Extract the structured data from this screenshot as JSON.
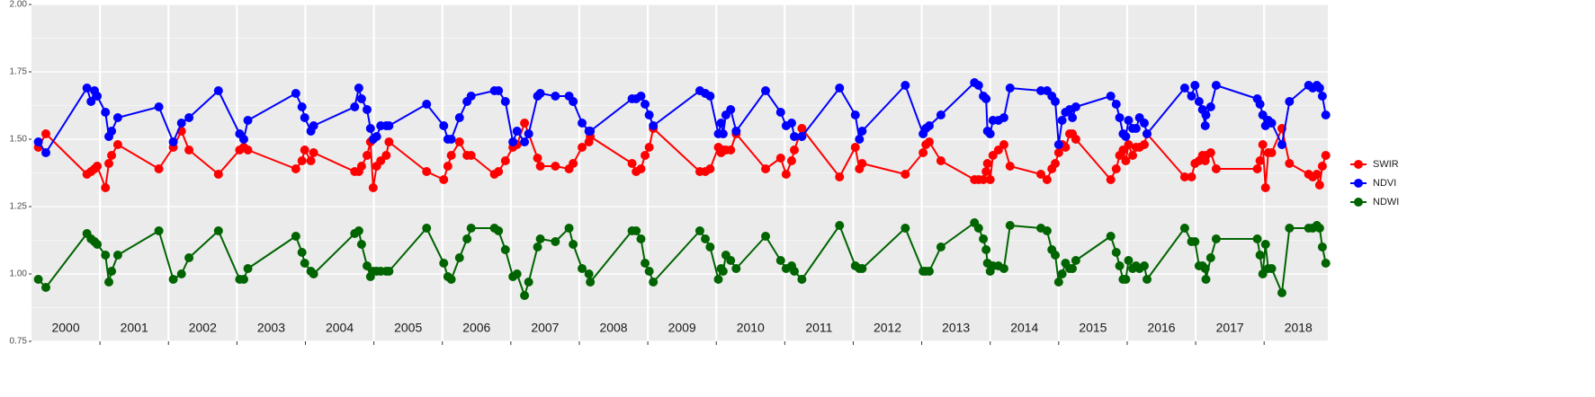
{
  "chart_data": {
    "type": "line",
    "x": [
      2000.1,
      2000.21,
      2000.81,
      2000.87,
      2000.92,
      2000.96,
      2001.08,
      2001.13,
      2001.17,
      2001.26,
      2001.86,
      2002.07,
      2002.19,
      2002.3,
      2002.73,
      2003.04,
      2003.1,
      2003.16,
      2003.86,
      2003.95,
      2003.99,
      2004.08,
      2004.12,
      2004.72,
      2004.78,
      2004.82,
      2004.9,
      2004.95,
      2004.99,
      2005.04,
      2005.1,
      2005.18,
      2005.22,
      2005.77,
      2006.02,
      2006.08,
      2006.13,
      2006.25,
      2006.36,
      2006.42,
      2006.76,
      2006.82,
      2006.92,
      2007.03,
      2007.09,
      2007.2,
      2007.26,
      2007.39,
      2007.43,
      2007.65,
      2007.85,
      2007.91,
      2008.04,
      2008.14,
      2008.16,
      2008.77,
      2008.83,
      2008.9,
      2008.96,
      2009.02,
      2009.08,
      2009.76,
      2009.84,
      2009.91,
      2010.03,
      2010.07,
      2010.1,
      2010.14,
      2010.21,
      2010.29,
      2010.72,
      2010.94,
      2011.02,
      2011.1,
      2011.14,
      2011.25,
      2011.8,
      2012.03,
      2012.09,
      2012.13,
      2012.76,
      2013.02,
      2013.06,
      2013.11,
      2013.28,
      2013.77,
      2013.83,
      2013.9,
      2013.94,
      2013.96,
      2014.0,
      2014.04,
      2014.12,
      2014.2,
      2014.29,
      2014.74,
      2014.83,
      2014.9,
      2014.95,
      2015.0,
      2015.05,
      2015.1,
      2015.16,
      2015.2,
      2015.25,
      2015.76,
      2015.84,
      2015.89,
      2015.94,
      2015.98,
      2016.02,
      2016.08,
      2016.13,
      2016.18,
      2016.25,
      2016.29,
      2016.84,
      2016.94,
      2016.99,
      2017.05,
      2017.1,
      2017.14,
      2017.15,
      2017.22,
      2017.3,
      2017.9,
      2017.94,
      2017.98,
      2018.02,
      2018.06,
      2018.11,
      2018.26,
      2018.37,
      2018.65,
      2018.71,
      2018.77,
      2018.81,
      2018.85,
      2018.9
    ],
    "series": [
      {
        "name": "SWIR",
        "color": "#ff0000",
        "values": [
          1.47,
          1.52,
          1.37,
          1.38,
          1.39,
          1.4,
          1.32,
          1.41,
          1.44,
          1.48,
          1.39,
          1.47,
          1.53,
          1.46,
          1.37,
          1.46,
          1.47,
          1.46,
          1.39,
          1.42,
          1.46,
          1.42,
          1.45,
          1.38,
          1.38,
          1.4,
          1.44,
          1.49,
          1.32,
          1.4,
          1.42,
          1.44,
          1.49,
          1.38,
          1.35,
          1.4,
          1.44,
          1.49,
          1.44,
          1.44,
          1.37,
          1.38,
          1.42,
          1.47,
          1.48,
          1.56,
          1.52,
          1.43,
          1.4,
          1.4,
          1.39,
          1.41,
          1.47,
          1.49,
          1.51,
          1.41,
          1.38,
          1.39,
          1.44,
          1.47,
          1.54,
          1.38,
          1.38,
          1.39,
          1.47,
          1.45,
          1.46,
          1.46,
          1.46,
          1.52,
          1.39,
          1.43,
          1.37,
          1.42,
          1.46,
          1.54,
          1.36,
          1.47,
          1.39,
          1.41,
          1.37,
          1.45,
          1.48,
          1.49,
          1.42,
          1.35,
          1.35,
          1.35,
          1.38,
          1.41,
          1.35,
          1.44,
          1.46,
          1.48,
          1.4,
          1.37,
          1.35,
          1.39,
          1.41,
          1.45,
          1.48,
          1.47,
          1.52,
          1.52,
          1.5,
          1.35,
          1.39,
          1.44,
          1.46,
          1.42,
          1.48,
          1.44,
          1.47,
          1.47,
          1.48,
          1.52,
          1.36,
          1.36,
          1.41,
          1.42,
          1.44,
          1.42,
          1.44,
          1.45,
          1.39,
          1.39,
          1.42,
          1.48,
          1.32,
          1.45,
          1.45,
          1.54,
          1.41,
          1.37,
          1.36,
          1.37,
          1.33,
          1.4,
          1.44
        ]
      },
      {
        "name": "NDVI",
        "color": "#0000ff",
        "values": [
          1.49,
          1.45,
          1.69,
          1.64,
          1.68,
          1.66,
          1.6,
          1.51,
          1.53,
          1.58,
          1.62,
          1.49,
          1.56,
          1.58,
          1.68,
          1.52,
          1.5,
          1.57,
          1.67,
          1.62,
          1.58,
          1.53,
          1.55,
          1.62,
          1.69,
          1.65,
          1.61,
          1.54,
          1.5,
          1.51,
          1.55,
          1.55,
          1.55,
          1.63,
          1.55,
          1.5,
          1.5,
          1.58,
          1.64,
          1.66,
          1.68,
          1.68,
          1.64,
          1.49,
          1.53,
          1.49,
          1.52,
          1.66,
          1.67,
          1.66,
          1.66,
          1.64,
          1.56,
          1.53,
          1.53,
          1.65,
          1.65,
          1.66,
          1.63,
          1.59,
          1.55,
          1.68,
          1.67,
          1.66,
          1.52,
          1.56,
          1.52,
          1.59,
          1.61,
          1.53,
          1.68,
          1.6,
          1.55,
          1.56,
          1.51,
          1.51,
          1.69,
          1.59,
          1.5,
          1.53,
          1.7,
          1.52,
          1.54,
          1.55,
          1.59,
          1.71,
          1.7,
          1.66,
          1.65,
          1.53,
          1.52,
          1.57,
          1.57,
          1.58,
          1.69,
          1.68,
          1.68,
          1.66,
          1.64,
          1.48,
          1.57,
          1.6,
          1.61,
          1.58,
          1.62,
          1.66,
          1.63,
          1.58,
          1.52,
          1.51,
          1.57,
          1.54,
          1.54,
          1.58,
          1.56,
          1.52,
          1.69,
          1.66,
          1.7,
          1.64,
          1.61,
          1.55,
          1.59,
          1.62,
          1.7,
          1.65,
          1.63,
          1.59,
          1.55,
          1.57,
          1.56,
          1.48,
          1.64,
          1.7,
          1.69,
          1.7,
          1.69,
          1.66,
          1.59
        ]
      },
      {
        "name": "NDWI",
        "color": "#006400",
        "values": [
          0.98,
          0.95,
          1.15,
          1.13,
          1.12,
          1.11,
          1.07,
          0.97,
          1.01,
          1.07,
          1.16,
          0.98,
          1.0,
          1.06,
          1.16,
          0.98,
          0.98,
          1.02,
          1.14,
          1.08,
          1.04,
          1.01,
          1.0,
          1.15,
          1.16,
          1.11,
          1.03,
          0.99,
          1.01,
          1.01,
          1.01,
          1.01,
          1.01,
          1.17,
          1.04,
          0.99,
          0.98,
          1.06,
          1.13,
          1.17,
          1.17,
          1.16,
          1.09,
          0.99,
          1.0,
          0.92,
          0.97,
          1.1,
          1.13,
          1.12,
          1.17,
          1.11,
          1.02,
          1.0,
          0.97,
          1.16,
          1.16,
          1.13,
          1.04,
          1.01,
          0.97,
          1.16,
          1.13,
          1.1,
          0.98,
          1.02,
          1.01,
          1.07,
          1.05,
          1.02,
          1.14,
          1.05,
          1.02,
          1.03,
          1.01,
          0.98,
          1.18,
          1.03,
          1.02,
          1.02,
          1.17,
          1.01,
          1.01,
          1.01,
          1.1,
          1.19,
          1.17,
          1.13,
          1.09,
          1.04,
          1.01,
          1.03,
          1.03,
          1.02,
          1.18,
          1.17,
          1.16,
          1.09,
          1.07,
          0.97,
          1.0,
          1.04,
          1.02,
          1.02,
          1.05,
          1.14,
          1.08,
          1.03,
          0.98,
          0.98,
          1.05,
          1.02,
          1.03,
          1.02,
          1.03,
          0.98,
          1.17,
          1.12,
          1.12,
          1.03,
          1.03,
          1.02,
          0.98,
          1.06,
          1.13,
          1.13,
          1.07,
          1.0,
          1.11,
          1.02,
          1.02,
          0.93,
          1.17,
          1.17,
          1.17,
          1.18,
          1.17,
          1.1,
          1.04
        ]
      }
    ],
    "xlim": [
      2000,
      2018.93
    ],
    "xticks": [
      {
        "value": 2000.5,
        "label": "2000"
      },
      {
        "value": 2001.5,
        "label": "2001"
      },
      {
        "value": 2002.5,
        "label": "2002"
      },
      {
        "value": 2003.5,
        "label": "2003"
      },
      {
        "value": 2004.5,
        "label": "2004"
      },
      {
        "value": 2005.5,
        "label": "2005"
      },
      {
        "value": 2006.5,
        "label": "2006"
      },
      {
        "value": 2007.5,
        "label": "2007"
      },
      {
        "value": 2008.5,
        "label": "2008"
      },
      {
        "value": 2009.5,
        "label": "2009"
      },
      {
        "value": 2010.5,
        "label": "2010"
      },
      {
        "value": 2011.5,
        "label": "2011"
      },
      {
        "value": 2012.5,
        "label": "2012"
      },
      {
        "value": 2013.5,
        "label": "2013"
      },
      {
        "value": 2014.5,
        "label": "2014"
      },
      {
        "value": 2015.5,
        "label": "2015"
      },
      {
        "value": 2016.5,
        "label": "2016"
      },
      {
        "value": 2017.5,
        "label": "2017"
      },
      {
        "value": 2018.5,
        "label": "2018"
      }
    ],
    "year_lines": [
      2001,
      2002,
      2003,
      2004,
      2005,
      2006,
      2007,
      2008,
      2009,
      2010,
      2011,
      2012,
      2013,
      2014,
      2015,
      2016,
      2017,
      2018
    ],
    "ylim": [
      0.75,
      2.0
    ],
    "yticks": [
      {
        "value": 0.75,
        "label": "0.75"
      },
      {
        "value": 1.0,
        "label": "1.00"
      },
      {
        "value": 1.25,
        "label": "1.25"
      },
      {
        "value": 1.5,
        "label": "1.50"
      },
      {
        "value": 1.75,
        "label": "1.75"
      },
      {
        "value": 2.0,
        "label": "2.00"
      }
    ],
    "grid": true,
    "legend": "right"
  }
}
